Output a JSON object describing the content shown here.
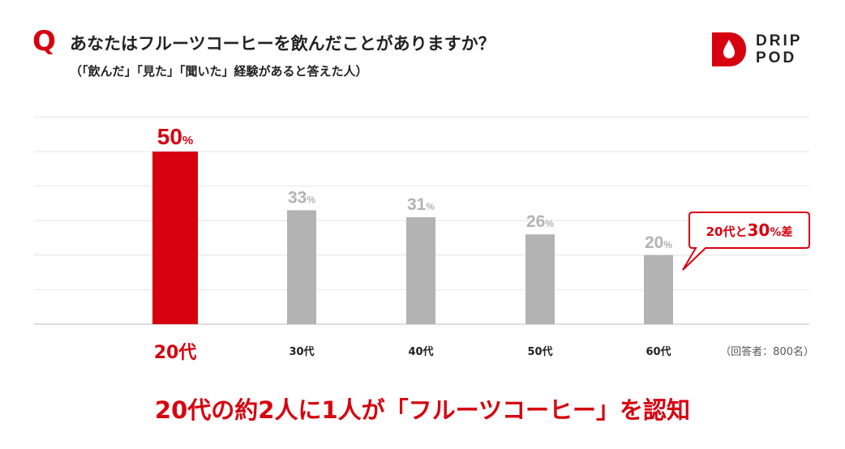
{
  "header": {
    "q_mark": "Q",
    "title": "あなたはフルーツコーヒーを飲んだことがありますか？",
    "subtitle": "（「飲んだ」「見た」「聞いた」経験があると答えた人）"
  },
  "brand": {
    "line1": "DRIP",
    "line2": "POD",
    "icon": "water-drop-icon",
    "color": "#d7000f"
  },
  "chart_data": {
    "type": "bar",
    "categories": [
      "20代",
      "30代",
      "40代",
      "50代",
      "60代"
    ],
    "values": [
      50,
      33,
      31,
      26,
      20
    ],
    "value_labels": [
      "50",
      "33",
      "31",
      "26",
      "20"
    ],
    "unit": "%",
    "ylim": [
      0,
      60
    ],
    "grid": true,
    "colors": {
      "highlight": "#d7000f",
      "default": "#b3b3b3"
    },
    "highlight_index": 0,
    "note": "（回答者：800名）",
    "callout": {
      "text_a": "20代と",
      "text_b": "30",
      "text_c": "%差",
      "target_index": 4
    }
  },
  "headline": "20代の約2人に1人が「フルーツコーヒー」を認知"
}
